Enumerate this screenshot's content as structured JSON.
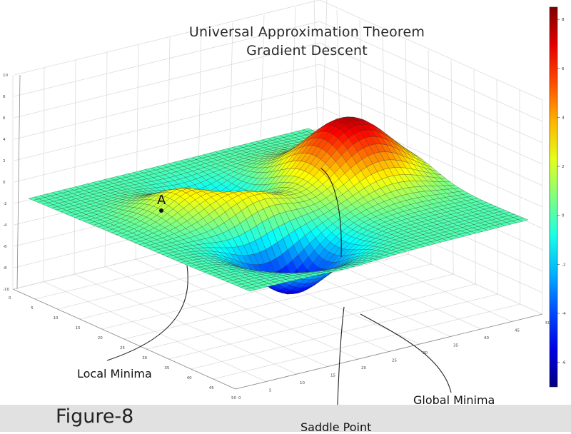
{
  "chart_data": {
    "type": "surface3d",
    "title": "Universal Approximation Theorem",
    "subtitle": "Gradient Descent",
    "z_ticks": [
      "-10",
      "-8",
      "-6",
      "-4",
      "-2",
      "0",
      "2",
      "4",
      "6",
      "8",
      "10"
    ],
    "x_ticks": [
      "0",
      "5",
      "10",
      "15",
      "20",
      "25",
      "30",
      "35",
      "40",
      "45",
      "50"
    ],
    "y_ticks": [
      "0",
      "5",
      "10",
      "15",
      "20",
      "25",
      "30",
      "35",
      "40",
      "45",
      "50"
    ],
    "zlim": [
      -10,
      10
    ],
    "xlim": [
      0,
      50
    ],
    "ylim": [
      0,
      50
    ],
    "grid": true,
    "colormap": "jet",
    "colorbar": {
      "ticks": [
        "8",
        "6",
        "4",
        "2",
        "0",
        "-2",
        "-4",
        "-6"
      ],
      "range": [
        -7,
        8.5
      ],
      "placement": "right"
    },
    "surface": {
      "grid_size": 49,
      "features": [
        {
          "name": "peak",
          "x": 28,
          "y": 40,
          "z": 7.5
        },
        {
          "name": "peak",
          "x": 23,
          "y": 20,
          "z": 3.8
        },
        {
          "name": "peak",
          "x": 32,
          "y": 14,
          "z": 3.2
        },
        {
          "name": "local-minimum",
          "x": 35,
          "y": 22,
          "z": -3.2
        },
        {
          "name": "global-minimum",
          "x": 14,
          "y": 18,
          "z": -6.5
        }
      ]
    },
    "annotations": [
      {
        "id": "point",
        "text": "A"
      },
      {
        "id": "local",
        "text": "Local Minima"
      },
      {
        "id": "saddle",
        "text": "Saddle Point"
      },
      {
        "id": "global",
        "text": "Global Minima"
      }
    ]
  },
  "figure_label": "Figure-8"
}
